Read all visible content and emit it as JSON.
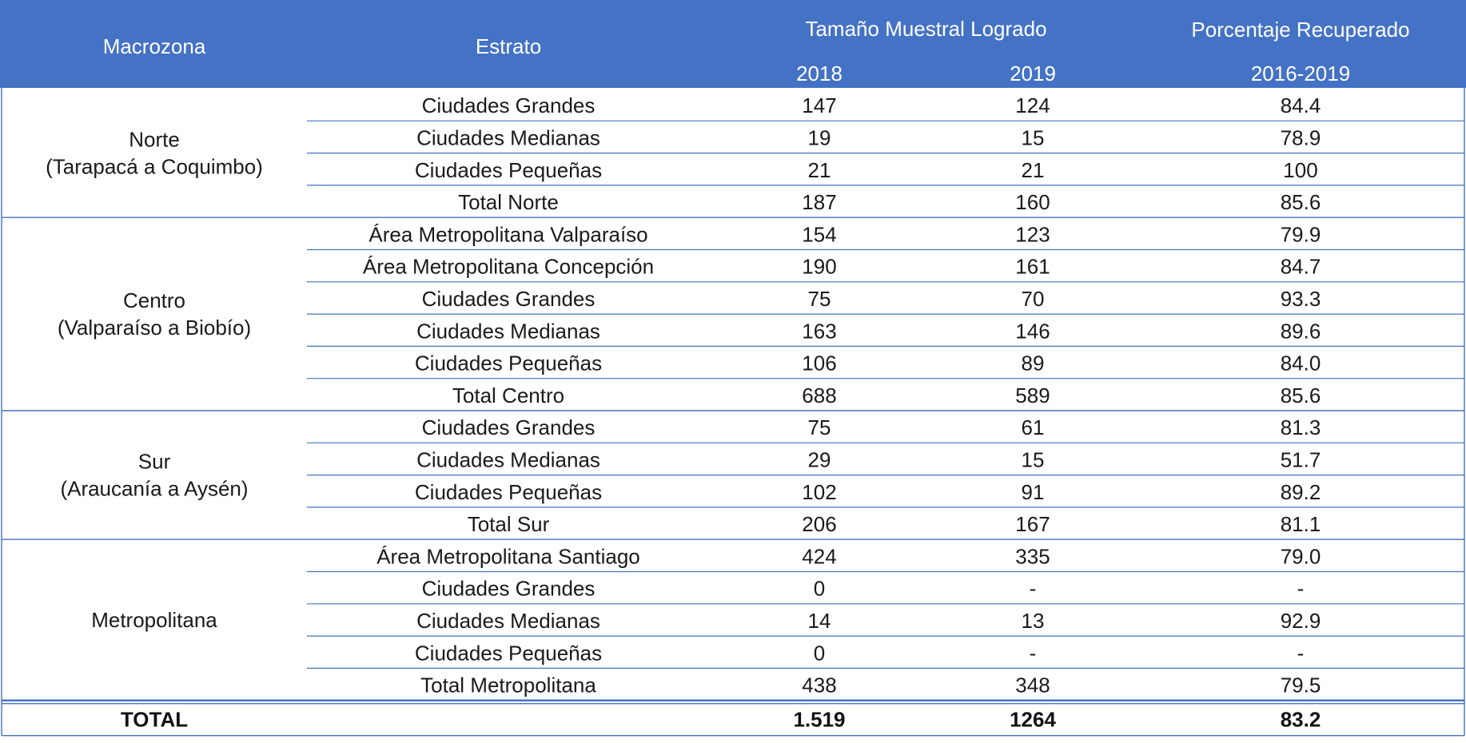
{
  "header": {
    "macrozona": "Macrozona",
    "estrato": "Estrato",
    "tamano": "Tamaño Muestral Logrado",
    "porcentaje": "Porcentaje Recuperado",
    "year_2018": "2018",
    "year_2019": "2019",
    "period": "2016-2019"
  },
  "colors": {
    "header_bg": "#4472C4",
    "grid_line": "#4472C4"
  },
  "groups": [
    {
      "name": "Norte",
      "sub": "(Tarapacá a Coquimbo)",
      "rows": [
        {
          "estrato": "Ciudades Grandes",
          "n2018": "147",
          "n2019": "124",
          "pct": "84.4"
        },
        {
          "estrato": "Ciudades Medianas",
          "n2018": "19",
          "n2019": "15",
          "pct": "78.9"
        },
        {
          "estrato": "Ciudades Pequeñas",
          "n2018": "21",
          "n2019": "21",
          "pct": "100"
        },
        {
          "estrato": "Total Norte",
          "n2018": "187",
          "n2019": "160",
          "pct": "85.6"
        }
      ]
    },
    {
      "name": "Centro",
      "sub": "(Valparaíso a Biobío)",
      "rows": [
        {
          "estrato": "Área Metropolitana Valparaíso",
          "n2018": "154",
          "n2019": "123",
          "pct": "79.9"
        },
        {
          "estrato": "Área Metropolitana Concepción",
          "n2018": "190",
          "n2019": "161",
          "pct": "84.7"
        },
        {
          "estrato": "Ciudades Grandes",
          "n2018": "75",
          "n2019": "70",
          "pct": "93.3"
        },
        {
          "estrato": "Ciudades Medianas",
          "n2018": "163",
          "n2019": "146",
          "pct": "89.6"
        },
        {
          "estrato": "Ciudades Pequeñas",
          "n2018": "106",
          "n2019": "89",
          "pct": "84.0"
        },
        {
          "estrato": "Total Centro",
          "n2018": "688",
          "n2019": "589",
          "pct": "85.6"
        }
      ]
    },
    {
      "name": "Sur",
      "sub": "(Araucanía a Aysén)",
      "rows": [
        {
          "estrato": "Ciudades Grandes",
          "n2018": "75",
          "n2019": "61",
          "pct": "81.3"
        },
        {
          "estrato": "Ciudades Medianas",
          "n2018": "29",
          "n2019": "15",
          "pct": "51.7"
        },
        {
          "estrato": "Ciudades Pequeñas",
          "n2018": "102",
          "n2019": "91",
          "pct": "89.2"
        },
        {
          "estrato": "Total Sur",
          "n2018": "206",
          "n2019": "167",
          "pct": "81.1"
        }
      ]
    },
    {
      "name": "Metropolitana",
      "sub": "",
      "rows": [
        {
          "estrato": "Área Metropolitana Santiago",
          "n2018": "424",
          "n2019": "335",
          "pct": "79.0"
        },
        {
          "estrato": "Ciudades Grandes",
          "n2018": "0",
          "n2019": "-",
          "pct": "-"
        },
        {
          "estrato": "Ciudades Medianas",
          "n2018": "14",
          "n2019": "13",
          "pct": "92.9"
        },
        {
          "estrato": "Ciudades Pequeñas",
          "n2018": "0",
          "n2019": "-",
          "pct": "-"
        },
        {
          "estrato": "Total Metropolitana",
          "n2018": "438",
          "n2019": "348",
          "pct": "79.5"
        }
      ]
    }
  ],
  "total": {
    "label": "TOTAL",
    "n2018": "1.519",
    "n2019": "1264",
    "pct": "83.2"
  }
}
